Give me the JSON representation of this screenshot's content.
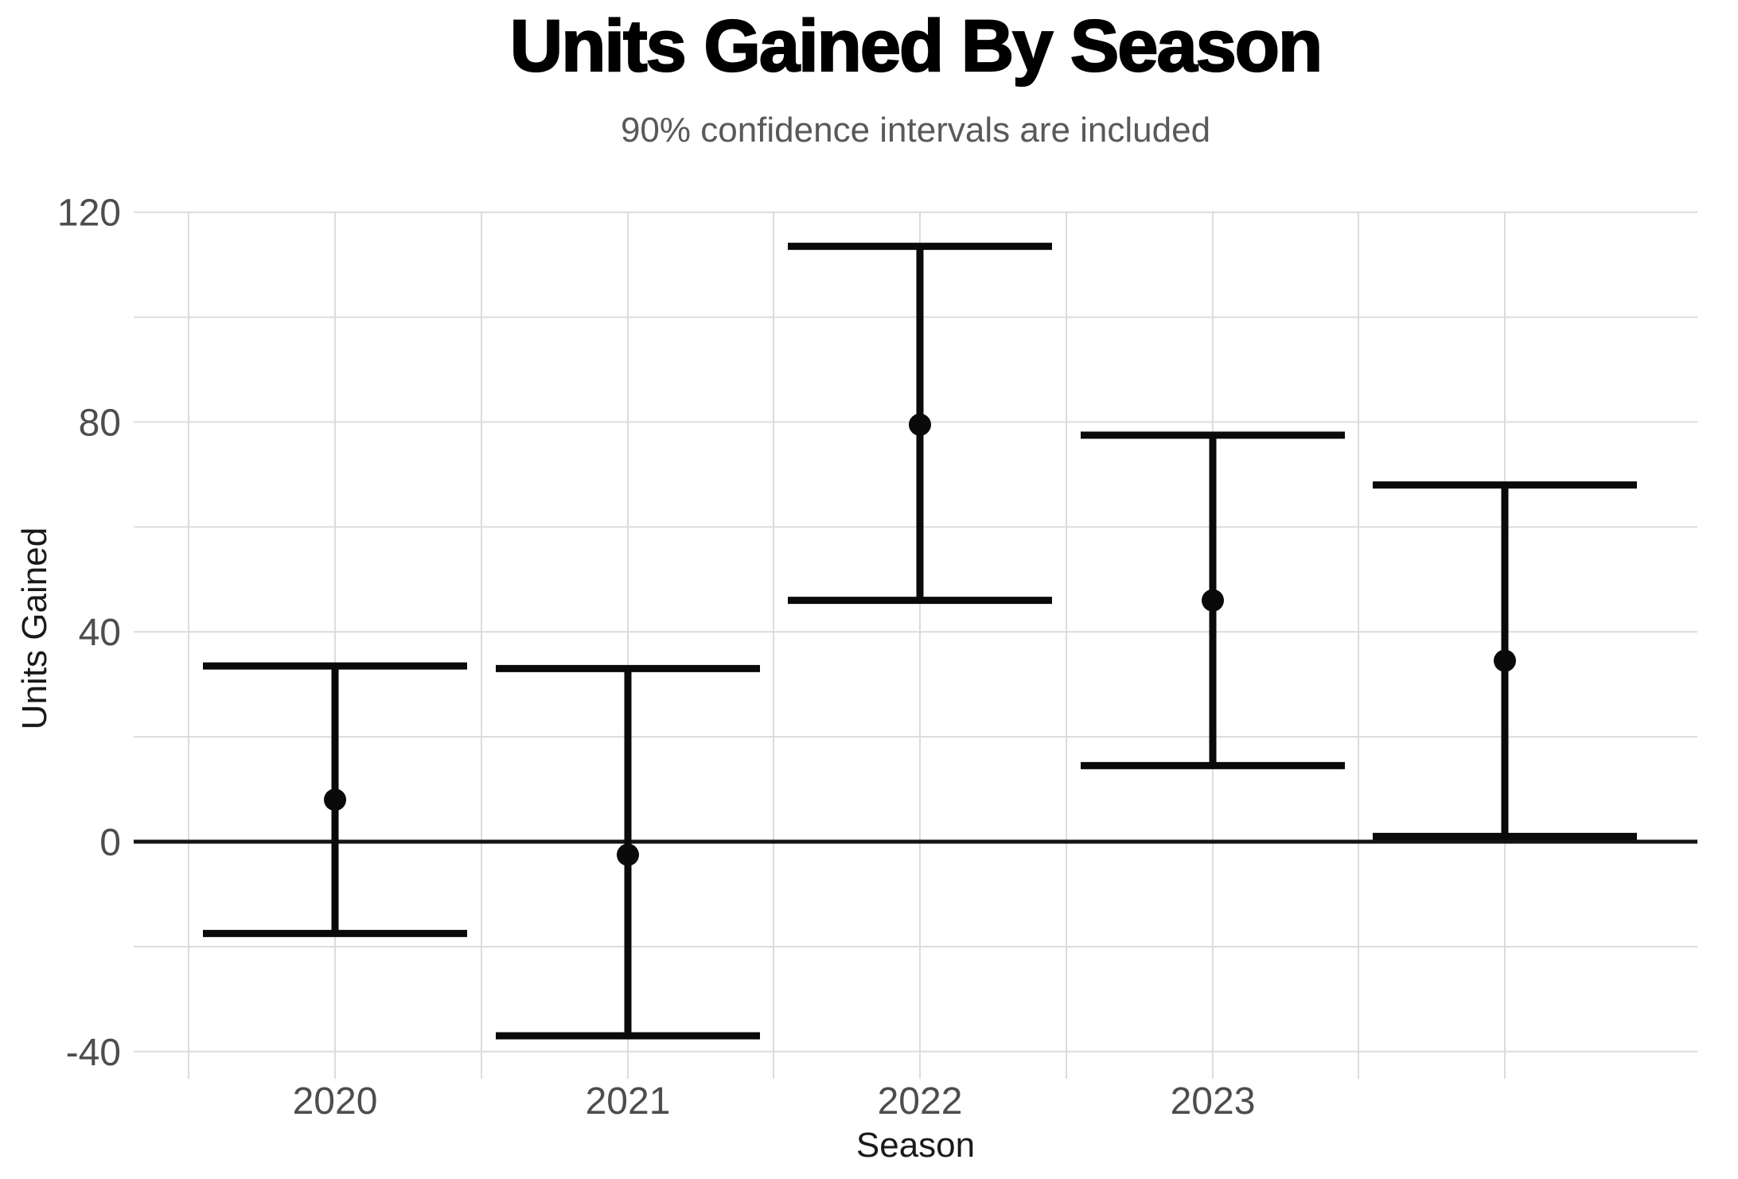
{
  "chart_data": {
    "type": "errorbar",
    "title": "Units Gained By Season",
    "subtitle": "90% confidence intervals are included",
    "xlabel": "Season",
    "ylabel": "Units Gained",
    "ylim": [
      -40,
      120
    ],
    "y_grid_step": 20,
    "y_ticks": [
      {
        "value": 120,
        "label": "120"
      },
      {
        "value": 80,
        "label": "80"
      },
      {
        "value": 40,
        "label": "40"
      },
      {
        "value": 0,
        "label": "0"
      },
      {
        "value": -40,
        "label": "-40"
      }
    ],
    "categories": [
      "2020",
      "2021",
      "2022",
      "2023",
      ""
    ],
    "points": [
      {
        "season": "2020",
        "center": 8,
        "lower": -17.5,
        "upper": 33.5
      },
      {
        "season": "2021",
        "center": -2.5,
        "lower": -37,
        "upper": 33
      },
      {
        "season": "2022",
        "center": 79.5,
        "lower": 46,
        "upper": 113.5
      },
      {
        "season": "2023",
        "center": 46,
        "lower": 14.5,
        "upper": 77.5
      },
      {
        "season": "",
        "center": 34.5,
        "lower": 1,
        "upper": 68
      }
    ],
    "zero_line": true,
    "grid": true,
    "legend": false,
    "colors": {
      "series": "#0a0a0a",
      "gridline": "#dcdcdc",
      "zero_line": "#141414",
      "tick_label": "#4d4d4d",
      "subtitle": "#595959",
      "title": "#000000",
      "axis_title": "#1a1a1a",
      "background": "#ffffff"
    }
  }
}
